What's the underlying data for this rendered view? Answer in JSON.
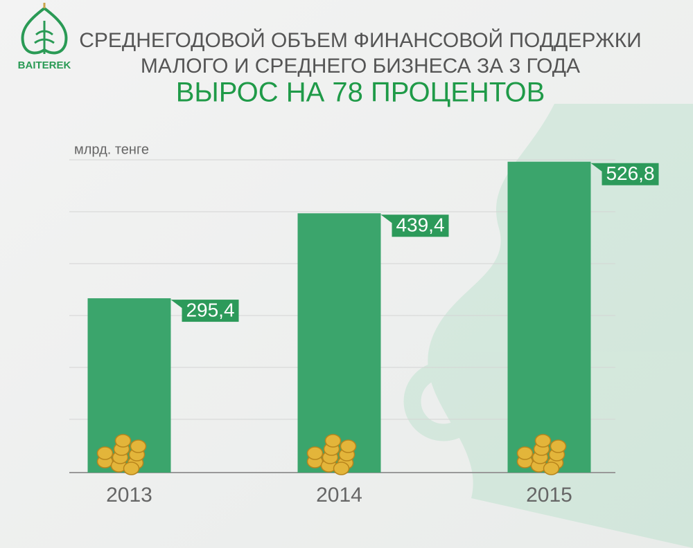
{
  "logo": "BAITEREK",
  "chart_data": {
    "type": "bar",
    "title": "СРЕДНЕГОДОВОЙ ОБЪЕМ ФИНАНСОВОЙ ПОДДЕРЖКИ",
    "title_line2": "МАЛОГО И СРЕДНЕГО БИЗНЕСА ЗА 3 ГОДА",
    "subtitle": "ВЫРОС НА 78 ПРОЦЕНТОВ",
    "y_label": "млрд. тенге",
    "categories": [
      "2013",
      "2014",
      "2015"
    ],
    "values": [
      295.4,
      439.4,
      526.8
    ],
    "value_labels": [
      "295,4",
      "439,4",
      "526,8"
    ],
    "color": "#3ba56c",
    "label_color": "#2c9a5a",
    "ylim": [
      0,
      530
    ]
  }
}
